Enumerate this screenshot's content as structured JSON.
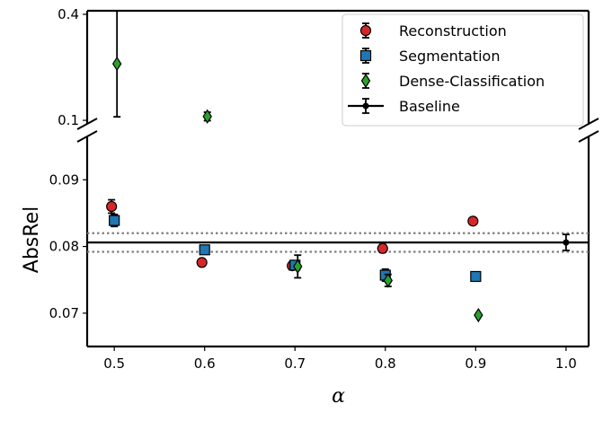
{
  "chart_data": {
    "type": "scatter",
    "xlabel": "α",
    "ylabel": "AbsRel",
    "xlim": [
      0.47,
      1.025
    ],
    "broken_y_axis": true,
    "upper_ylim": [
      0.09,
      0.41
    ],
    "lower_ylim": [
      0.065,
      0.0965
    ],
    "x_ticks": [
      {
        "value": 0.5,
        "label": "0.5"
      },
      {
        "value": 0.6,
        "label": "0.6"
      },
      {
        "value": 0.7,
        "label": "0.7"
      },
      {
        "value": 0.8,
        "label": "0.8"
      },
      {
        "value": 0.9,
        "label": "0.9"
      },
      {
        "value": 1.0,
        "label": "1.0"
      }
    ],
    "upper_y_ticks": [
      {
        "value": 0.4,
        "label": "0.4"
      },
      {
        "value": 0.1,
        "label": "0.1"
      }
    ],
    "lower_y_ticks": [
      {
        "value": 0.09,
        "label": "0.09"
      },
      {
        "value": 0.08,
        "label": "0.08"
      },
      {
        "value": 0.07,
        "label": "0.07"
      }
    ],
    "series": [
      {
        "name": "Reconstruction",
        "marker": "circle",
        "color": "#d62728",
        "points": [
          {
            "x": 0.497,
            "y": 0.086,
            "err": 0.001
          },
          {
            "x": 0.597,
            "y": 0.0776,
            "err": 0.0
          },
          {
            "x": 0.697,
            "y": 0.0771,
            "err": 0.0006
          },
          {
            "x": 0.797,
            "y": 0.0797,
            "err": 0.0006
          },
          {
            "x": 0.897,
            "y": 0.0838,
            "err": 0.0
          }
        ]
      },
      {
        "name": "Segmentation",
        "marker": "square",
        "color": "#1f77b4",
        "points": [
          {
            "x": 0.5,
            "y": 0.0839,
            "err": 0.0009
          },
          {
            "x": 0.6,
            "y": 0.0795,
            "err": 0.0
          },
          {
            "x": 0.7,
            "y": 0.0772,
            "err": 0.0006
          },
          {
            "x": 0.8,
            "y": 0.0757,
            "err": 0.0009
          },
          {
            "x": 0.9,
            "y": 0.0755,
            "err": 0.0
          }
        ]
      },
      {
        "name": "Dense-Classification",
        "marker": "diamond",
        "color": "#2ca02c",
        "points": [
          {
            "x": 0.503,
            "y": 0.26,
            "err": 0.15
          },
          {
            "x": 0.603,
            "y": 0.111,
            "err": 0.012
          },
          {
            "x": 0.703,
            "y": 0.077,
            "err": 0.0017
          },
          {
            "x": 0.803,
            "y": 0.0749,
            "err": 0.0009
          },
          {
            "x": 0.903,
            "y": 0.0697,
            "err": 0.0
          }
        ]
      }
    ],
    "baseline": {
      "name": "Baseline",
      "color": "#000000",
      "value": 0.0806,
      "lower": 0.0792,
      "upper": 0.082,
      "point": {
        "x": 1.0,
        "y": 0.0806,
        "err": 0.0012
      }
    },
    "legend": {
      "position": "top-right",
      "entries": [
        "Reconstruction",
        "Segmentation",
        "Dense-Classification",
        "Baseline"
      ]
    }
  }
}
